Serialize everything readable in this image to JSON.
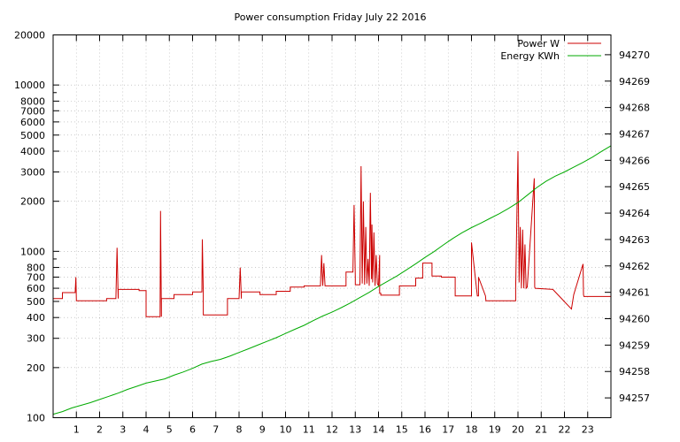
{
  "chart_data": {
    "type": "line",
    "title": "Power consumption Friday July 22 2016",
    "xlabel": "",
    "ylabel": "",
    "y2label": "",
    "xlim": [
      0,
      24
    ],
    "ylim": [
      100,
      20000
    ],
    "yscale": "log",
    "y2lim": [
      94256.25,
      94270.75
    ],
    "grid": true,
    "legend_position": "top-right",
    "x_ticks": [
      "1",
      "2",
      "3",
      "4",
      "5",
      "6",
      "7",
      "8",
      "9",
      "10",
      "11",
      "12",
      "13",
      "14",
      "15",
      "16",
      "17",
      "18",
      "19",
      "20",
      "21",
      "22",
      "23"
    ],
    "y_ticks": [
      "100",
      "200",
      "300",
      "400",
      "500",
      "600",
      "700",
      "800",
      "1000",
      "2000",
      "3000",
      "4000",
      "5000",
      "6000",
      "7000",
      "8000",
      "10000",
      "20000"
    ],
    "y2_ticks": [
      "94257",
      "94258",
      "94259",
      "94260",
      "94261",
      "94262",
      "94263",
      "94264",
      "94265",
      "94266",
      "94267",
      "94268",
      "94269",
      "94270"
    ],
    "series": [
      {
        "name": "Power W",
        "axis": "y",
        "color": "#cc0000",
        "x": [
          0,
          0.4,
          0.4,
          0.95,
          0.98,
          1.0,
          1.0,
          1.3,
          1.3,
          2.3,
          2.3,
          2.7,
          2.75,
          2.8,
          2.8,
          3.7,
          3.7,
          4.0,
          4.0,
          4.6,
          4.62,
          4.66,
          4.66,
          5.2,
          5.2,
          6.0,
          6.0,
          6.4,
          6.42,
          6.46,
          6.46,
          7.5,
          7.5,
          8.0,
          8.05,
          8.1,
          8.1,
          8.9,
          8.9,
          9.6,
          9.6,
          10.2,
          10.2,
          10.8,
          10.8,
          11.5,
          11.55,
          11.6,
          11.65,
          11.7,
          11.7,
          12.6,
          12.6,
          12.9,
          12.95,
          13.0,
          13.0,
          13.2,
          13.25,
          13.3,
          13.35,
          13.4,
          13.45,
          13.5,
          13.55,
          13.6,
          13.65,
          13.7,
          13.72,
          13.75,
          13.8,
          13.85,
          13.9,
          13.95,
          14.0,
          14.05,
          14.05,
          14.1,
          14.1,
          14.9,
          14.9,
          15.6,
          15.6,
          15.9,
          15.9,
          16.3,
          16.3,
          16.7,
          16.7,
          17.3,
          17.3,
          18.0,
          18.0,
          18.25,
          18.3,
          18.3,
          18.6,
          18.62,
          18.64,
          18.64,
          19.9,
          19.9,
          20.0,
          20.05,
          20.1,
          20.15,
          20.2,
          20.25,
          20.3,
          20.35,
          20.4,
          20.4,
          20.7,
          20.72,
          20.74,
          20.74,
          21.5,
          21.5,
          22.3,
          22.3,
          22.4,
          22.4,
          22.8,
          22.82,
          22.84,
          22.84,
          24
        ],
        "y": [
          520,
          520,
          565,
          565,
          700,
          505,
          505,
          505,
          505,
          505,
          520,
          520,
          1050,
          520,
          590,
          590,
          580,
          580,
          405,
          405,
          1750,
          405,
          520,
          520,
          550,
          550,
          570,
          570,
          1180,
          570,
          415,
          415,
          520,
          520,
          800,
          520,
          570,
          570,
          550,
          550,
          575,
          575,
          610,
          610,
          620,
          620,
          950,
          620,
          850,
          620,
          620,
          620,
          750,
          750,
          1900,
          700,
          630,
          630,
          3250,
          640,
          2000,
          630,
          1400,
          640,
          900,
          620,
          2250,
          680,
          1450,
          650,
          1300,
          620,
          950,
          640,
          620,
          950,
          560,
          560,
          545,
          545,
          620,
          620,
          690,
          690,
          850,
          850,
          710,
          710,
          700,
          700,
          540,
          540,
          1130,
          540,
          540,
          700,
          540,
          505,
          505,
          505,
          505,
          600,
          4000,
          650,
          1400,
          600,
          1350,
          600,
          1100,
          600,
          610,
          610,
          2750,
          610,
          600,
          600,
          590,
          590,
          450,
          450,
          550,
          550,
          840,
          550,
          535,
          535,
          535
        ]
      },
      {
        "name": "Energy KWh",
        "axis": "y2",
        "color": "#00aa00",
        "x": [
          0,
          0.4,
          0.8,
          1.2,
          1.6,
          2.0,
          2.4,
          2.8,
          3.2,
          3.6,
          4.0,
          4.4,
          4.8,
          5.2,
          5.6,
          6.0,
          6.4,
          6.8,
          7.2,
          7.6,
          8.0,
          8.4,
          8.8,
          9.2,
          9.6,
          10.0,
          10.4,
          10.8,
          11.2,
          11.6,
          12.0,
          12.4,
          12.8,
          13.2,
          13.6,
          14.0,
          14.4,
          14.8,
          15.2,
          15.6,
          16.0,
          16.4,
          16.8,
          17.2,
          17.6,
          18.0,
          18.4,
          18.8,
          19.2,
          19.6,
          20.0,
          20.4,
          20.8,
          21.2,
          21.6,
          22.0,
          22.4,
          22.8,
          23.2,
          23.6,
          24.0
        ],
        "y": [
          94256.38,
          94256.48,
          94256.62,
          94256.72,
          94256.82,
          94256.94,
          94257.06,
          94257.18,
          94257.32,
          94257.44,
          94257.56,
          94257.64,
          94257.72,
          94257.86,
          94257.98,
          94258.12,
          94258.28,
          94258.38,
          94258.46,
          94258.58,
          94258.72,
          94258.86,
          94259.0,
          94259.14,
          94259.28,
          94259.44,
          94259.6,
          94259.75,
          94259.93,
          94260.1,
          94260.25,
          94260.42,
          94260.6,
          94260.8,
          94261.0,
          94261.22,
          94261.42,
          94261.62,
          94261.85,
          94262.08,
          94262.32,
          94262.55,
          94262.8,
          94263.04,
          94263.26,
          94263.45,
          94263.62,
          94263.8,
          94263.98,
          94264.18,
          94264.4,
          94264.68,
          94264.96,
          94265.2,
          94265.4,
          94265.56,
          94265.74,
          94265.92,
          94266.12,
          94266.34,
          94266.55
        ]
      }
    ]
  }
}
